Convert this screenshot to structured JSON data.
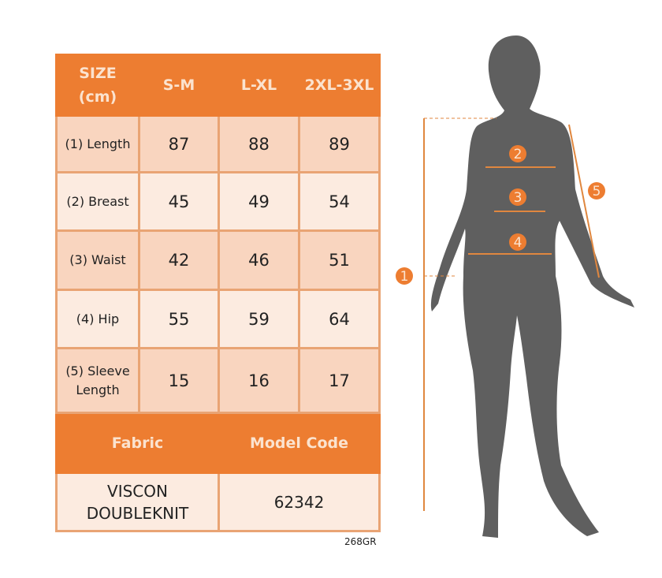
{
  "colors": {
    "accent": "#ED7D31",
    "cell_dark": "#F9D5BF",
    "cell_light": "#FCEBE0",
    "silhouette": "#5f5f5f"
  },
  "table": {
    "header": [
      "SIZE (cm)",
      "S-M",
      "L-XL",
      "2XL-3XL"
    ],
    "rows": [
      {
        "label": "(1) Length",
        "values": [
          "87",
          "88",
          "89"
        ]
      },
      {
        "label": "(2) Breast",
        "values": [
          "45",
          "49",
          "54"
        ]
      },
      {
        "label": "(3) Waist",
        "values": [
          "42",
          "46",
          "51"
        ]
      },
      {
        "label": "(4) Hip",
        "values": [
          "55",
          "59",
          "64"
        ]
      },
      {
        "label": "(5) Sleeve Length",
        "values": [
          "15",
          "16",
          "17"
        ]
      }
    ],
    "fabric_header": "Fabric",
    "model_code_header": "Model Code",
    "fabric": "VISCON DOUBLEKNIT",
    "model_code": "62342"
  },
  "product_code": "268GR",
  "figure": {
    "markers": [
      "1",
      "2",
      "3",
      "4",
      "5"
    ]
  }
}
